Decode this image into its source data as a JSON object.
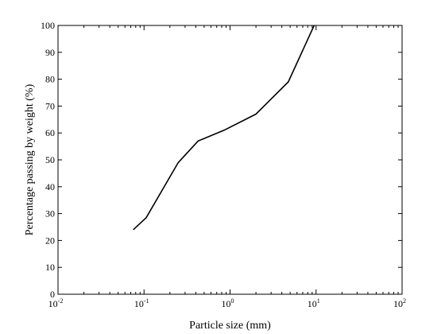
{
  "chart_data": {
    "type": "line",
    "title": "",
    "xlabel": "Particle size (mm)",
    "ylabel": "Percentage passing by weight (%)",
    "xscale": "log",
    "xlim": [
      0.01,
      100
    ],
    "ylim": [
      0,
      100
    ],
    "grid": false,
    "legend": "none",
    "x_ticks": [
      {
        "value": 0.01,
        "base": "10",
        "exp": "-2"
      },
      {
        "value": 0.1,
        "base": "10",
        "exp": "-1"
      },
      {
        "value": 1,
        "base": "10",
        "exp": "0"
      },
      {
        "value": 10,
        "base": "10",
        "exp": "1"
      },
      {
        "value": 100,
        "base": "10",
        "exp": "2"
      }
    ],
    "y_ticks": [
      "0",
      "10",
      "20",
      "30",
      "40",
      "50",
      "60",
      "70",
      "80",
      "90",
      "100"
    ],
    "series": [
      {
        "color": "#000000",
        "x": [
          0.075,
          0.106,
          0.25,
          0.425,
          0.85,
          2.0,
          4.75,
          9.5
        ],
        "y": [
          24,
          28.5,
          49,
          57,
          61,
          67,
          79,
          100
        ]
      }
    ]
  }
}
